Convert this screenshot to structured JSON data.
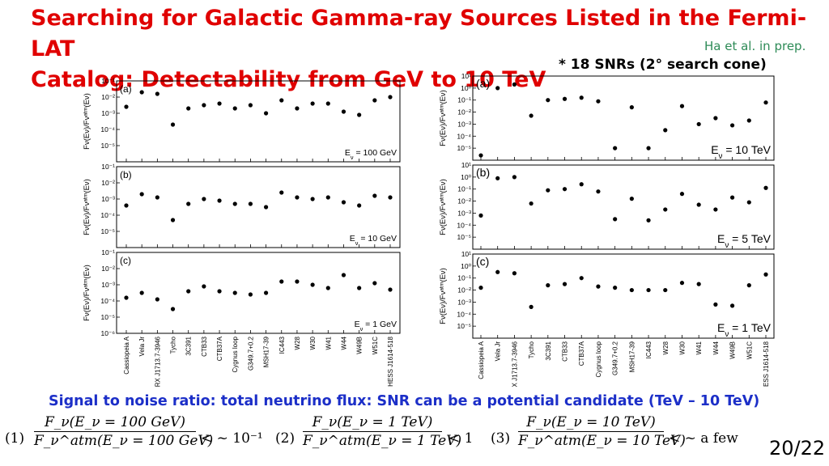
{
  "slide": {
    "title_line1": "Searching for Galactic Gamma-ray Sources Listed in the Fermi-LAT",
    "title_line2": "Catalog: Detectability from GeV to 10 TeV",
    "reference": "Ha et al. in prep.",
    "snr_note": "* 18 SNRs (2° search cone)",
    "signal_text": "Signal to noise ratio: total neutrino flux: SNR can be a potential candidate (TeV – 10 TeV)",
    "page_number": "20/22",
    "colors": {
      "title": "#e00000",
      "reference": "#2e8b57",
      "signal": "#1c2fc8"
    }
  },
  "equations": [
    {
      "num": "(1)",
      "numerator": "F_ν(E_ν = 100 GeV)",
      "denominator": "F_ν^atm(E_ν = 100 GeV)",
      "relation": "< ~ 10⁻¹"
    },
    {
      "num": "(2)",
      "numerator": "F_ν(E_ν = 1 TeV)",
      "denominator": "F_ν^atm(E_ν = 1 TeV)",
      "relation": "< 1"
    },
    {
      "num": "(3)",
      "numerator": "F_ν(E_ν = 10 TeV)",
      "denominator": "F_ν^atm(E_ν = 10 TeV)",
      "relation": "< ~ a few"
    }
  ],
  "chart_data": [
    {
      "type": "scatter",
      "ylabel": "F_ν(E_ν)/F_ν^atm(E_ν)",
      "log_y": true,
      "categories": [
        "Cassiopeia A",
        "Vela Jr",
        "RX J1713.7-3946",
        "Tycho",
        "3C391",
        "CTB33",
        "CTB37A",
        "Cygnus loop",
        "G349.7+0.2",
        "MSH17-39",
        "IC443",
        "W28",
        "W30",
        "W41",
        "W44",
        "W49B",
        "W51C",
        "HESS J1614-518"
      ],
      "panels": [
        {
          "label": "(a)",
          "energy_label": "E_ν = 100 GeV",
          "ylim_exp": [
            -6,
            -1
          ],
          "ticks_exp": [
            -1,
            -2,
            -3,
            -4,
            -5
          ],
          "log10_values": [
            -2.6,
            -1.7,
            -1.8,
            -3.7,
            -2.7,
            -2.5,
            -2.4,
            -2.7,
            -2.5,
            -3.0,
            -2.2,
            -2.7,
            -2.4,
            -2.4,
            -2.9,
            -3.1,
            -2.2,
            -2.0
          ]
        },
        {
          "label": "(b)",
          "energy_label": "E_ν = 10 GeV",
          "ylim_exp": [
            -6,
            -1
          ],
          "ticks_exp": [
            -1,
            -2,
            -3,
            -4,
            -5
          ],
          "log10_values": [
            -3.4,
            -2.7,
            -2.9,
            -4.3,
            -3.3,
            -3.0,
            -3.1,
            -3.3,
            -3.3,
            -3.5,
            -2.6,
            -2.9,
            -3.0,
            -2.9,
            -3.2,
            -3.4,
            -2.8,
            -2.9
          ]
        },
        {
          "label": "(c)",
          "energy_label": "E_ν = 1 GeV",
          "ylim_exp": [
            -6,
            -1
          ],
          "ticks_exp": [
            -1,
            -2,
            -3,
            -4,
            -5,
            -6
          ],
          "log10_values": [
            -3.8,
            -3.5,
            -3.9,
            -4.5,
            -3.4,
            -3.1,
            -3.4,
            -3.5,
            -3.6,
            -3.5,
            -2.8,
            -2.8,
            -3.0,
            -3.2,
            -2.4,
            -3.2,
            -2.9,
            -3.3
          ]
        }
      ]
    },
    {
      "type": "scatter",
      "ylabel": "F_ν(E_ν)/F_ν^atm(E_ν)",
      "log_y": true,
      "categories": [
        "Cassiopeia A",
        "Vela Jr",
        "RX J1713.7-3946",
        "Tycho",
        "3C391",
        "CTB33",
        "CTB37A",
        "Cygnus loop",
        "G349.7+0.2",
        "MSH17-39",
        "IC443",
        "W28",
        "W30",
        "W41",
        "W44",
        "W49B",
        "W51C",
        "HESS J1614-518"
      ],
      "panels": [
        {
          "label": "(a)",
          "energy_label": "E_ν = 10 TeV",
          "ylim_exp": [
            -6,
            1
          ],
          "ticks_exp": [
            1,
            0,
            -1,
            -2,
            -3,
            -4,
            -5
          ],
          "log10_values": [
            -5.6,
            0.0,
            0.3,
            -2.3,
            -1.0,
            -0.9,
            -0.8,
            -1.1,
            -5.0,
            -1.6,
            -5.0,
            -3.5,
            -1.5,
            -3.0,
            -2.5,
            -3.1,
            -2.7,
            -1.2
          ]
        },
        {
          "label": "(b)",
          "energy_label": "E_ν = 5 TeV",
          "ylim_exp": [
            -6,
            1
          ],
          "ticks_exp": [
            1,
            0,
            -1,
            -2,
            -3,
            -4,
            -5
          ],
          "log10_values": [
            -3.2,
            -0.1,
            0.0,
            -2.2,
            -1.1,
            -1.0,
            -0.6,
            -1.2,
            -3.5,
            -1.8,
            -3.6,
            -2.7,
            -1.4,
            -2.3,
            -2.7,
            -1.7,
            -2.1,
            -0.9
          ]
        },
        {
          "label": "(c)",
          "energy_label": "E_ν = 1 TeV",
          "ylim_exp": [
            -6,
            1
          ],
          "ticks_exp": [
            1,
            0,
            -1,
            -2,
            -3,
            -4,
            -5
          ],
          "log10_values": [
            -1.8,
            -0.5,
            -0.6,
            -3.4,
            -1.6,
            -1.5,
            -1.0,
            -1.7,
            -1.8,
            -2.0,
            -2.0,
            -2.0,
            -1.4,
            -1.5,
            -3.2,
            -3.3,
            -1.6,
            -0.7
          ]
        }
      ]
    }
  ]
}
